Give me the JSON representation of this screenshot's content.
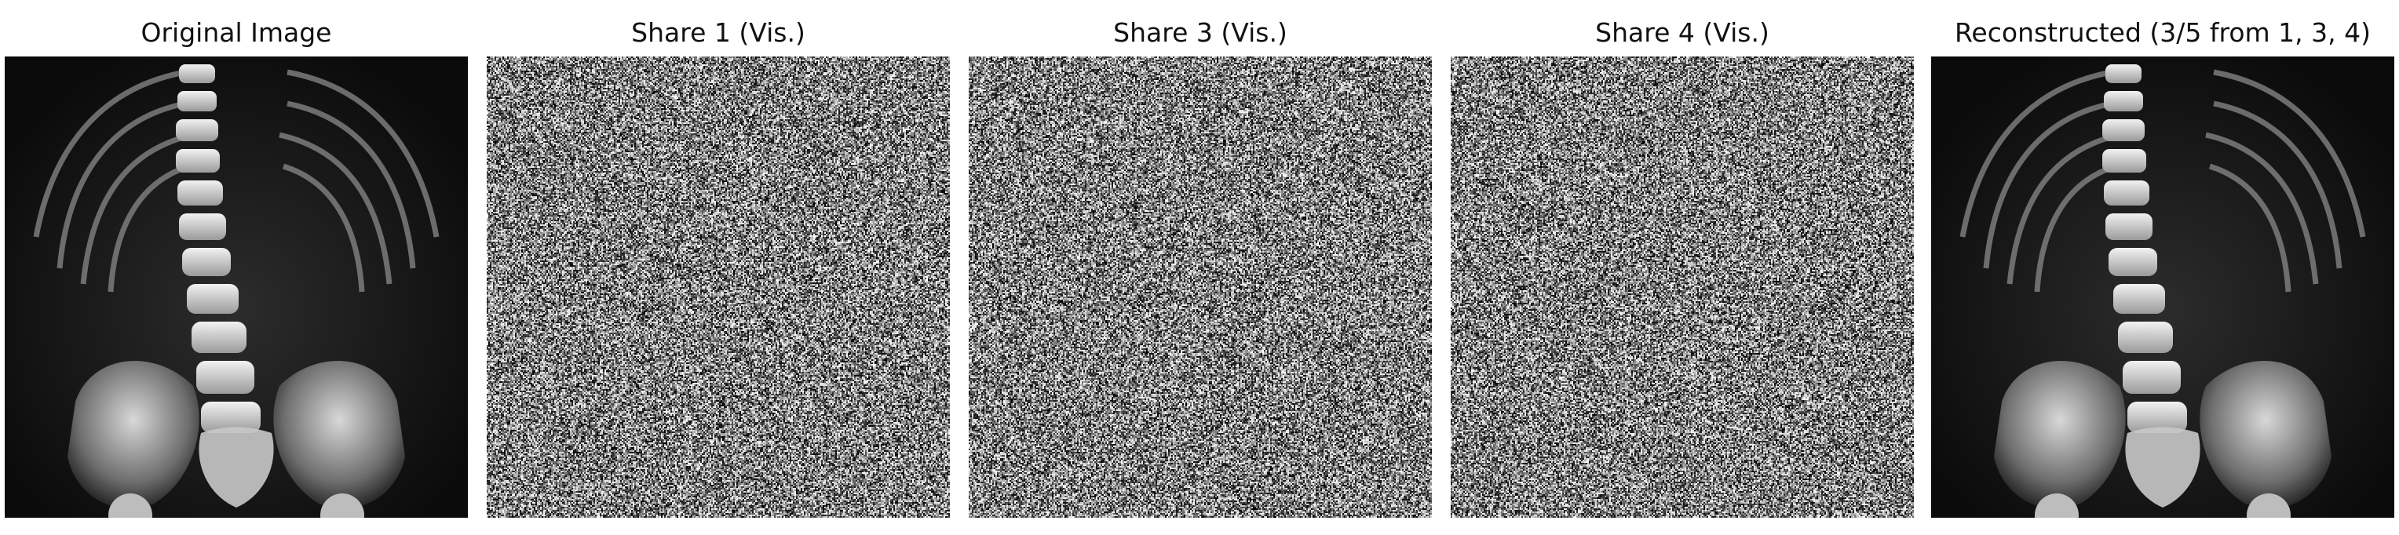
{
  "panels": [
    {
      "title": "Original Image",
      "kind": "xray"
    },
    {
      "title": "Share 1 (Vis.)",
      "kind": "noise"
    },
    {
      "title": "Share 3 (Vis.)",
      "kind": "noise"
    },
    {
      "title": "Share 4 (Vis.)",
      "kind": "noise"
    },
    {
      "title": "Reconstructed (3/5 from 1, 3, 4)",
      "kind": "xray"
    }
  ],
  "colors": {
    "background": "#ffffff",
    "title_text": "#111111",
    "xray_dark": "#101010",
    "bone_light": "#e8e8e8",
    "bone_mid": "#a9a9a9"
  }
}
